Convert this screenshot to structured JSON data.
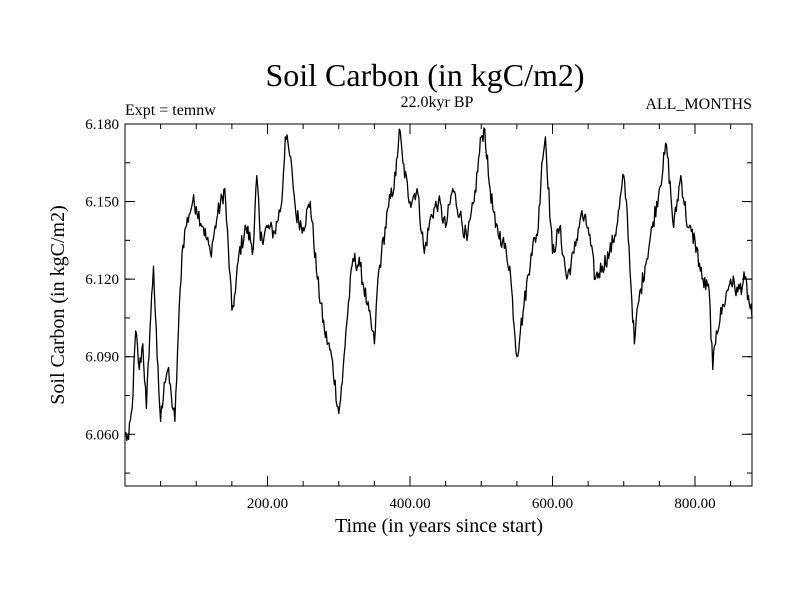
{
  "chart_data": {
    "type": "line",
    "title": "Soil Carbon (in kgC/m2)",
    "subtitle_left": "Expt = temnw",
    "subtitle_center": "22.0kyr BP",
    "subtitle_right": "ALL_MONTHS",
    "xlabel": "Time (in years since start)",
    "ylabel": "Soil Carbon (in kgC/m2)",
    "xlim": [
      0,
      880
    ],
    "ylim": [
      6.04,
      6.18
    ],
    "xticks": [
      200,
      400,
      600,
      800
    ],
    "xtick_labels": [
      "200.00",
      "400.00",
      "600.00",
      "800.00"
    ],
    "yticks": [
      6.06,
      6.09,
      6.12,
      6.15,
      6.18
    ],
    "ytick_labels": [
      "6.060",
      "6.090",
      "6.120",
      "6.150",
      "6.180"
    ],
    "grid": false,
    "series": [
      {
        "name": "Soil Carbon",
        "x": [
          0,
          5,
          10,
          15,
          20,
          25,
          30,
          35,
          40,
          45,
          50,
          55,
          60,
          65,
          70,
          75,
          80,
          85,
          90,
          95,
          100,
          110,
          120,
          130,
          140,
          150,
          155,
          160,
          170,
          180,
          185,
          190,
          200,
          210,
          220,
          225,
          230,
          235,
          240,
          250,
          260,
          270,
          280,
          290,
          300,
          305,
          310,
          320,
          330,
          340,
          350,
          355,
          360,
          370,
          380,
          385,
          390,
          400,
          410,
          420,
          430,
          440,
          450,
          460,
          470,
          480,
          490,
          500,
          505,
          510,
          520,
          530,
          540,
          550,
          555,
          560,
          570,
          580,
          585,
          590,
          600,
          610,
          620,
          630,
          640,
          650,
          660,
          670,
          680,
          690,
          700,
          705,
          710,
          715,
          720,
          730,
          740,
          750,
          760,
          770,
          780,
          790,
          800,
          810,
          820,
          825,
          830,
          840,
          850,
          860,
          870,
          880
        ],
        "values": [
          6.06,
          6.058,
          6.07,
          6.1,
          6.085,
          6.095,
          6.07,
          6.1,
          6.125,
          6.09,
          6.065,
          6.08,
          6.085,
          6.075,
          6.065,
          6.1,
          6.13,
          6.14,
          6.145,
          6.15,
          6.148,
          6.14,
          6.13,
          6.145,
          6.155,
          6.108,
          6.115,
          6.13,
          6.14,
          6.132,
          6.16,
          6.135,
          6.14,
          6.138,
          6.15,
          6.175,
          6.17,
          6.16,
          6.145,
          6.14,
          6.15,
          6.12,
          6.1,
          6.09,
          6.068,
          6.08,
          6.1,
          6.128,
          6.125,
          6.11,
          6.095,
          6.12,
          6.13,
          6.148,
          6.16,
          6.178,
          6.165,
          6.15,
          6.155,
          6.13,
          6.145,
          6.15,
          6.14,
          6.155,
          6.145,
          6.135,
          6.15,
          6.175,
          6.178,
          6.16,
          6.14,
          6.135,
          6.125,
          6.09,
          6.1,
          6.11,
          6.13,
          6.14,
          6.165,
          6.175,
          6.13,
          6.14,
          6.12,
          6.13,
          6.145,
          6.14,
          6.12,
          6.125,
          6.13,
          6.14,
          6.16,
          6.145,
          6.118,
          6.095,
          6.11,
          6.125,
          6.14,
          6.155,
          6.172,
          6.14,
          6.16,
          6.14,
          6.135,
          6.12,
          6.115,
          6.085,
          6.1,
          6.11,
          6.12,
          6.115,
          6.12,
          6.105
        ]
      }
    ]
  }
}
